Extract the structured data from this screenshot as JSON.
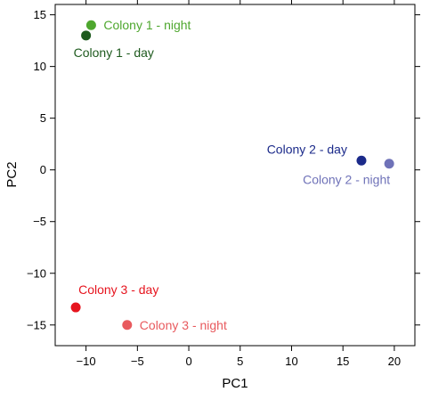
{
  "chart_data": {
    "type": "scatter",
    "xlabel": "PC1",
    "ylabel": "PC2",
    "xlim": [
      -13,
      22
    ],
    "ylim": [
      -17,
      16
    ],
    "xticks": [
      -10,
      -5,
      0,
      5,
      10,
      15,
      20
    ],
    "yticks": [
      -15,
      -10,
      -5,
      0,
      5,
      10,
      15
    ],
    "xtick_labels": [
      "−10",
      "−5",
      "0",
      "5",
      "10",
      "15",
      "20"
    ],
    "ytick_labels": [
      "−15",
      "−10",
      "−5",
      "0",
      "5",
      "10",
      "15"
    ],
    "grid": false,
    "points": [
      {
        "label": "Colony 1 - night",
        "x": -9.5,
        "y": 14.0,
        "color": "#4ea72e",
        "label_pos": "right"
      },
      {
        "label": "Colony 1 - day",
        "x": -10.0,
        "y": 13.0,
        "color": "#1e5a1e",
        "label_pos": "below"
      },
      {
        "label": "Colony 2 - day",
        "x": 16.8,
        "y": 0.9,
        "color": "#1b2a8a",
        "label_pos": "above-left"
      },
      {
        "label": "Colony 2 - night",
        "x": 19.5,
        "y": 0.6,
        "color": "#6f72b8",
        "label_pos": "below-left"
      },
      {
        "label": "Colony 3 - day",
        "x": -11.0,
        "y": -13.3,
        "color": "#e6141e",
        "label_pos": "above-right"
      },
      {
        "label": "Colony 3 - night",
        "x": -6.0,
        "y": -15.0,
        "color": "#e85a5e",
        "label_pos": "right"
      }
    ]
  }
}
